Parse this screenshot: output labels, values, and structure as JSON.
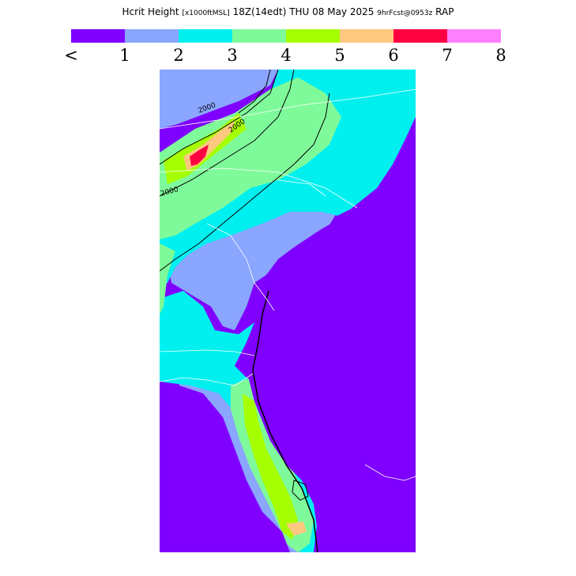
{
  "header": {
    "title_main": "Hcrit Height",
    "title_units": "[x1000ftMSL]",
    "title_time": "18Z(14edt) THU 08 May 2025",
    "title_fcst": "9hrFcst@0953z",
    "title_model": "RAP"
  },
  "legend": {
    "colors": [
      "#7f00ff",
      "#8aa6ff",
      "#00f0f0",
      "#7ffa9a",
      "#a6ff00",
      "#ffc880",
      "#ff0040",
      "#ff80ff"
    ],
    "labels": [
      "<",
      "1",
      "2",
      "3",
      "4",
      "5",
      "6",
      "7",
      "8"
    ]
  },
  "map": {
    "contour_labels": [
      "2000",
      "2000",
      "2000"
    ],
    "palette": {
      "ocean": "#7f00ff",
      "lt_blue": "#8aa6ff",
      "cyan": "#00f0f0",
      "lt_green": "#7ffa9a",
      "yellow_green": "#a6ff00",
      "orange": "#ffc880",
      "red": "#ff0040",
      "boundary": "#ffffff",
      "contour": "#000000"
    }
  }
}
